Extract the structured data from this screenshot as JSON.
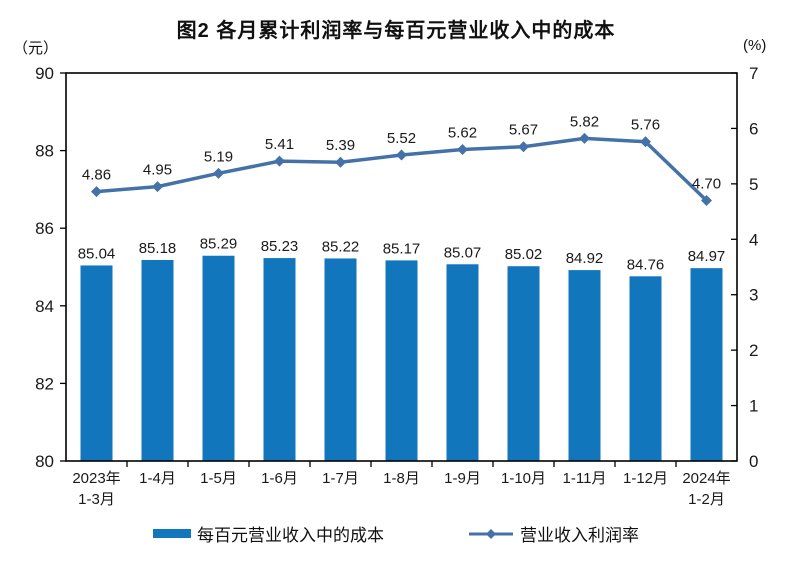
{
  "title": "图2 各月累计利润率与每百元营业收入中的成本",
  "left_axis": {
    "unit": "（元）"
  },
  "right_axis": {
    "unit": "(%)"
  },
  "chart_data": {
    "type": "bar+line",
    "title": "图2 各月累计利润率与每百元营业收入中的成本",
    "categories": [
      [
        "2023年",
        "1-3月"
      ],
      [
        "1-4月"
      ],
      [
        "1-5月"
      ],
      [
        "1-6月"
      ],
      [
        "1-7月"
      ],
      [
        "1-8月"
      ],
      [
        "1-9月"
      ],
      [
        "1-10月"
      ],
      [
        "1-11月"
      ],
      [
        "1-12月"
      ],
      [
        "2024年",
        "1-2月"
      ]
    ],
    "series": [
      {
        "name": "每百元营业收入中的成本",
        "type": "bar",
        "axis": "left",
        "color": "#1176BC",
        "values": [
          85.04,
          85.18,
          85.29,
          85.23,
          85.22,
          85.17,
          85.07,
          85.02,
          84.92,
          84.76,
          84.97
        ]
      },
      {
        "name": "营业收入利润率",
        "type": "line",
        "axis": "right",
        "color": "#4472A8",
        "values": [
          4.86,
          4.95,
          5.19,
          5.41,
          5.39,
          5.52,
          5.62,
          5.67,
          5.82,
          5.76,
          4.7
        ]
      }
    ],
    "left_ylabel": "（元）",
    "right_ylabel": "(%)",
    "left_ylim": [
      80,
      90
    ],
    "left_ticks": [
      80,
      82,
      84,
      86,
      88,
      90
    ],
    "right_ylim": [
      0,
      7
    ],
    "right_ticks": [
      0,
      1,
      2,
      3,
      4,
      5,
      6,
      7
    ],
    "grid": false,
    "legend_position": "bottom"
  }
}
